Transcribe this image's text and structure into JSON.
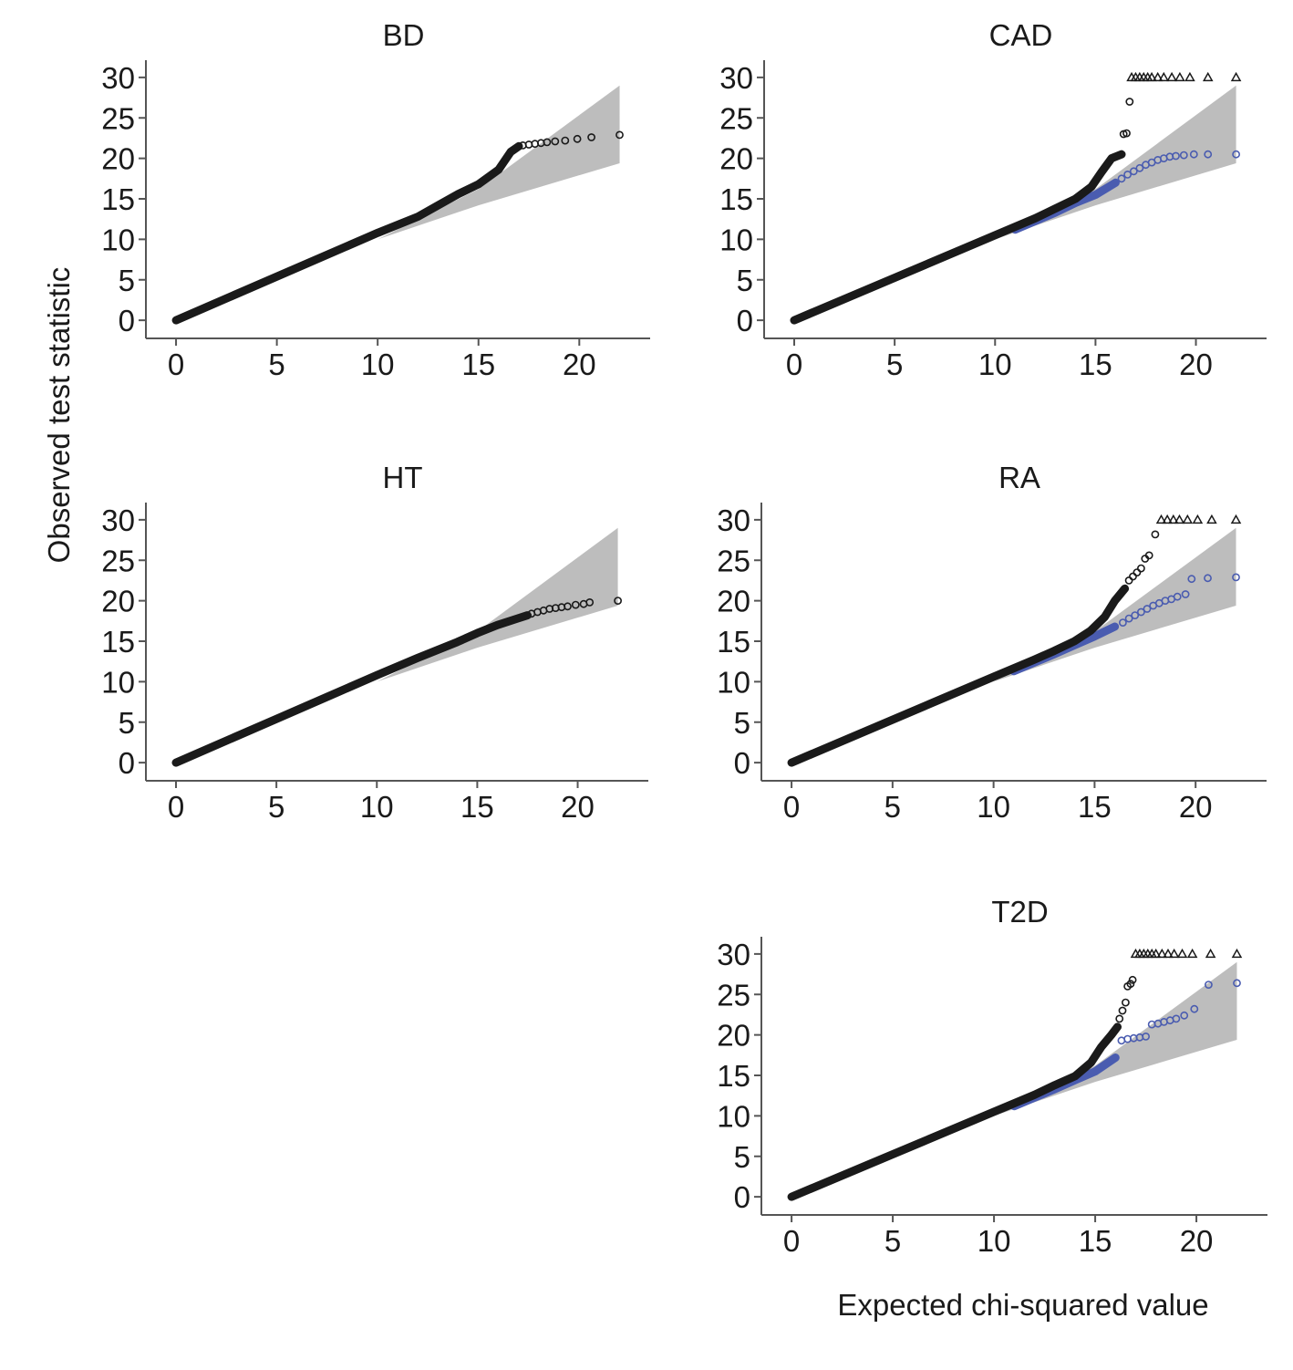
{
  "figure": {
    "ylabel": "Observed test statistic",
    "xlabel": "Expected chi-squared value",
    "colors": {
      "band": "#bdbdbd",
      "primary_points": "#1a1a1a",
      "secondary_points": "#4a5cb0",
      "axis": "#555555"
    },
    "marker_note": "triangles mark values truncated at 30"
  },
  "chart_data": [
    {
      "type": "scatter",
      "title": "BD",
      "xlim": [
        -0.5,
        22.7
      ],
      "ylim": [
        -1,
        31
      ],
      "xticks": [
        0,
        5,
        10,
        15,
        20
      ],
      "yticks": [
        0,
        5,
        10,
        15,
        20,
        25,
        30
      ],
      "band": {
        "x": [
          0,
          10,
          15,
          22
        ],
        "lower": [
          0,
          10,
          14.2,
          19.4
        ],
        "upper": [
          0,
          10,
          16.2,
          29.0
        ]
      },
      "series": [
        {
          "role": "primary",
          "line_points": [
            [
              0,
              0
            ],
            [
              10,
              10.8
            ],
            [
              12,
              12.8
            ],
            [
              13,
              14.2
            ],
            [
              14,
              15.6
            ],
            [
              15,
              16.8
            ],
            [
              16,
              18.6
            ],
            [
              16.6,
              20.8
            ],
            [
              17,
              21.5
            ]
          ],
          "open_points": [
            [
              17.2,
              21.6
            ],
            [
              17.5,
              21.7
            ],
            [
              17.8,
              21.8
            ],
            [
              18.1,
              21.9
            ],
            [
              18.4,
              22.0
            ],
            [
              18.8,
              22.1
            ],
            [
              19.3,
              22.2
            ],
            [
              19.9,
              22.4
            ],
            [
              20.6,
              22.6
            ],
            [
              22,
              22.9
            ]
          ],
          "triangles": []
        }
      ]
    },
    {
      "type": "scatter",
      "title": "CAD",
      "xlim": [
        -0.5,
        22.7
      ],
      "ylim": [
        -1,
        31
      ],
      "xticks": [
        0,
        5,
        10,
        15,
        20
      ],
      "yticks": [
        0,
        5,
        10,
        15,
        20,
        25,
        30
      ],
      "band": {
        "x": [
          0,
          10,
          15,
          22
        ],
        "lower": [
          0,
          10,
          14.2,
          19.4
        ],
        "upper": [
          0,
          10,
          16.2,
          29.0
        ]
      },
      "series": [
        {
          "role": "secondary",
          "line_points": [
            [
              11,
              11.2
            ],
            [
              13,
              13.3
            ],
            [
              14,
              14.5
            ],
            [
              15,
              15.5
            ],
            [
              16,
              17.0
            ]
          ],
          "open_points": [
            [
              16.3,
              17.5
            ],
            [
              16.6,
              18.0
            ],
            [
              16.9,
              18.4
            ],
            [
              17.2,
              18.8
            ],
            [
              17.5,
              19.2
            ],
            [
              17.8,
              19.5
            ],
            [
              18.1,
              19.8
            ],
            [
              18.4,
              20.0
            ],
            [
              18.7,
              20.2
            ],
            [
              19.0,
              20.3
            ],
            [
              19.4,
              20.4
            ],
            [
              19.9,
              20.5
            ],
            [
              20.6,
              20.5
            ],
            [
              22,
              20.5
            ]
          ],
          "triangles": []
        },
        {
          "role": "primary",
          "line_points": [
            [
              0,
              0
            ],
            [
              10,
              10.5
            ],
            [
              12,
              12.6
            ],
            [
              13,
              13.8
            ],
            [
              14,
              15.0
            ],
            [
              14.8,
              16.5
            ],
            [
              15.3,
              18.3
            ],
            [
              15.8,
              20.0
            ],
            [
              16.3,
              20.5
            ]
          ],
          "open_points": [
            [
              16.4,
              23.0
            ],
            [
              16.55,
              23.1
            ],
            [
              16.7,
              27.0
            ]
          ],
          "triangles": [
            [
              16.8,
              30
            ],
            [
              17.0,
              30
            ],
            [
              17.2,
              30
            ],
            [
              17.4,
              30
            ],
            [
              17.6,
              30
            ],
            [
              17.8,
              30
            ],
            [
              18.1,
              30
            ],
            [
              18.4,
              30
            ],
            [
              18.8,
              30
            ],
            [
              19.2,
              30
            ],
            [
              19.7,
              30
            ],
            [
              20.6,
              30
            ],
            [
              22,
              30
            ]
          ]
        }
      ]
    },
    {
      "type": "scatter",
      "title": "HT",
      "xlim": [
        -0.5,
        22.7
      ],
      "ylim": [
        -1,
        31
      ],
      "xticks": [
        0,
        5,
        10,
        15,
        20
      ],
      "yticks": [
        0,
        5,
        10,
        15,
        20,
        25,
        30
      ],
      "band": {
        "x": [
          0,
          10,
          15,
          22
        ],
        "lower": [
          0,
          10,
          14.2,
          19.4
        ],
        "upper": [
          0,
          10,
          16.2,
          29.0
        ]
      },
      "series": [
        {
          "role": "primary",
          "line_points": [
            [
              0,
              0
            ],
            [
              5,
              5.4
            ],
            [
              10,
              10.8
            ],
            [
              12,
              12.9
            ],
            [
              14,
              14.9
            ],
            [
              15,
              16.0
            ],
            [
              16,
              17.0
            ],
            [
              17,
              17.8
            ],
            [
              17.5,
              18.2
            ]
          ],
          "open_points": [
            [
              17.7,
              18.4
            ],
            [
              18.0,
              18.6
            ],
            [
              18.3,
              18.8
            ],
            [
              18.6,
              19.0
            ],
            [
              18.9,
              19.1
            ],
            [
              19.2,
              19.2
            ],
            [
              19.5,
              19.3
            ],
            [
              19.9,
              19.5
            ],
            [
              20.3,
              19.6
            ],
            [
              20.6,
              19.8
            ],
            [
              22,
              20.0
            ]
          ],
          "triangles": []
        }
      ]
    },
    {
      "type": "scatter",
      "title": "RA",
      "xlim": [
        -0.5,
        22.7
      ],
      "ylim": [
        -1,
        31
      ],
      "xticks": [
        0,
        5,
        10,
        15,
        20
      ],
      "yticks": [
        0,
        5,
        10,
        15,
        20,
        25,
        30
      ],
      "band": {
        "x": [
          0,
          10,
          15,
          22
        ],
        "lower": [
          0,
          10,
          14.2,
          19.4
        ],
        "upper": [
          0,
          10,
          16.2,
          29.0
        ]
      },
      "series": [
        {
          "role": "secondary",
          "line_points": [
            [
              11,
              11.3
            ],
            [
              13,
              13.4
            ],
            [
              14,
              14.5
            ],
            [
              15,
              15.6
            ],
            [
              16,
              16.8
            ]
          ],
          "open_points": [
            [
              16.4,
              17.3
            ],
            [
              16.7,
              17.8
            ],
            [
              17.0,
              18.2
            ],
            [
              17.3,
              18.6
            ],
            [
              17.6,
              19.0
            ],
            [
              17.9,
              19.4
            ],
            [
              18.2,
              19.7
            ],
            [
              18.5,
              20.0
            ],
            [
              18.8,
              20.2
            ],
            [
              19.1,
              20.5
            ],
            [
              19.5,
              20.8
            ],
            [
              19.8,
              22.7
            ],
            [
              20.6,
              22.8
            ],
            [
              22,
              22.9
            ]
          ],
          "triangles": []
        },
        {
          "role": "primary",
          "line_points": [
            [
              0,
              0
            ],
            [
              10,
              10.6
            ],
            [
              12,
              12.7
            ],
            [
              13,
              13.8
            ],
            [
              14,
              15.0
            ],
            [
              14.8,
              16.3
            ],
            [
              15.5,
              18.0
            ],
            [
              16.0,
              20.0
            ],
            [
              16.5,
              21.5
            ]
          ],
          "open_points": [
            [
              16.7,
              22.5
            ],
            [
              16.9,
              23.0
            ],
            [
              17.1,
              23.5
            ],
            [
              17.3,
              24.0
            ],
            [
              17.5,
              25.2
            ],
            [
              17.7,
              25.6
            ],
            [
              18.0,
              28.2
            ]
          ],
          "triangles": [
            [
              18.3,
              30
            ],
            [
              18.6,
              30
            ],
            [
              18.9,
              30
            ],
            [
              19.2,
              30
            ],
            [
              19.6,
              30
            ],
            [
              20.1,
              30
            ],
            [
              20.8,
              30
            ],
            [
              22,
              30
            ]
          ]
        }
      ]
    },
    {
      "type": "scatter",
      "title": "T2D",
      "xlim": [
        -0.5,
        22.7
      ],
      "ylim": [
        -1,
        31
      ],
      "xticks": [
        0,
        5,
        10,
        15,
        20
      ],
      "yticks": [
        0,
        5,
        10,
        15,
        20,
        25,
        30
      ],
      "band": {
        "x": [
          0,
          10,
          15,
          22
        ],
        "lower": [
          0,
          10,
          14.2,
          19.4
        ],
        "upper": [
          0,
          10,
          16.2,
          29.0
        ]
      },
      "series": [
        {
          "role": "secondary",
          "line_points": [
            [
              11,
              11.2
            ],
            [
              13,
              13.3
            ],
            [
              14,
              14.4
            ],
            [
              15,
              15.5
            ],
            [
              16,
              17.2
            ]
          ],
          "open_points": [
            [
              16.3,
              19.3
            ],
            [
              16.6,
              19.5
            ],
            [
              16.9,
              19.6
            ],
            [
              17.2,
              19.7
            ],
            [
              17.5,
              19.8
            ],
            [
              17.8,
              21.3
            ],
            [
              18.1,
              21.4
            ],
            [
              18.4,
              21.6
            ],
            [
              18.7,
              21.8
            ],
            [
              19.0,
              22.0
            ],
            [
              19.4,
              22.4
            ],
            [
              19.9,
              23.2
            ],
            [
              20.6,
              26.2
            ],
            [
              22,
              26.4
            ]
          ],
          "triangles": []
        },
        {
          "role": "primary",
          "line_points": [
            [
              0,
              0
            ],
            [
              10,
              10.5
            ],
            [
              12,
              12.6
            ],
            [
              13,
              13.8
            ],
            [
              14,
              14.9
            ],
            [
              14.8,
              16.6
            ],
            [
              15.3,
              18.5
            ],
            [
              15.8,
              20.0
            ],
            [
              16.1,
              21.0
            ]
          ],
          "open_points": [
            [
              16.2,
              22.0
            ],
            [
              16.35,
              23.0
            ],
            [
              16.5,
              24.0
            ],
            [
              16.6,
              26.0
            ],
            [
              16.75,
              26.3
            ],
            [
              16.85,
              26.8
            ]
          ],
          "triangles": [
            [
              17.0,
              30
            ],
            [
              17.2,
              30
            ],
            [
              17.4,
              30
            ],
            [
              17.6,
              30
            ],
            [
              17.8,
              30
            ],
            [
              18.0,
              30
            ],
            [
              18.3,
              30
            ],
            [
              18.6,
              30
            ],
            [
              18.9,
              30
            ],
            [
              19.3,
              30
            ],
            [
              19.8,
              30
            ],
            [
              20.7,
              30
            ],
            [
              22,
              30
            ]
          ]
        }
      ]
    }
  ]
}
